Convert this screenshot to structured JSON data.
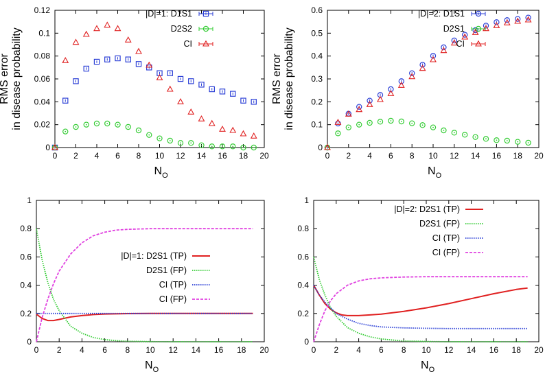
{
  "chart_data": [
    {
      "type": "scatter",
      "x_label": "N",
      "x_label_sub": "O",
      "y_label_line1": "RMS error",
      "y_label_line2": "in disease probability",
      "xlim": [
        0,
        20
      ],
      "ylim": [
        0,
        0.12
      ],
      "xticks": [
        0,
        2,
        4,
        6,
        8,
        10,
        12,
        14,
        16,
        18,
        20
      ],
      "yticks": [
        0,
        0.02,
        0.04,
        0.06,
        0.08,
        0.1,
        0.12
      ],
      "ytick_labels": [
        "0",
        "0.02",
        "0.04",
        "0.06",
        "0.08",
        "0.1",
        "0.12"
      ],
      "legend_position": "top-right",
      "series": [
        {
          "name": "|D|=1: D1S1",
          "marker": "square",
          "color": "#2b3fd6",
          "x": [
            0,
            1,
            2,
            3,
            4,
            5,
            6,
            7,
            8,
            9,
            10,
            11,
            12,
            13,
            14,
            15,
            16,
            17,
            18,
            19
          ],
          "y": [
            0,
            0.041,
            0.058,
            0.069,
            0.075,
            0.077,
            0.078,
            0.077,
            0.073,
            0.07,
            0.065,
            0.065,
            0.06,
            0.058,
            0.055,
            0.051,
            0.049,
            0.047,
            0.041,
            0.04
          ]
        },
        {
          "name": "D2S2",
          "marker": "circle",
          "color": "#33cc33",
          "x": [
            0,
            1,
            2,
            3,
            4,
            5,
            6,
            7,
            8,
            9,
            10,
            11,
            12,
            13,
            14,
            15,
            16,
            17,
            18,
            19
          ],
          "y": [
            0,
            0.014,
            0.018,
            0.02,
            0.021,
            0.021,
            0.02,
            0.018,
            0.015,
            0.011,
            0.008,
            0.006,
            0.004,
            0.004,
            0.002,
            0.001,
            0.001,
            0.001,
            0.0,
            0.0
          ]
        },
        {
          "name": "CI",
          "marker": "triangle",
          "color": "#e02020",
          "x": [
            0,
            1,
            2,
            3,
            4,
            5,
            6,
            7,
            8,
            9,
            10,
            11,
            12,
            13,
            14,
            15,
            16,
            17,
            18,
            19
          ],
          "y": [
            0,
            0.076,
            0.092,
            0.099,
            0.104,
            0.107,
            0.104,
            0.094,
            0.084,
            0.072,
            0.061,
            0.051,
            0.04,
            0.031,
            0.025,
            0.021,
            0.016,
            0.015,
            0.012,
            0.01
          ]
        }
      ]
    },
    {
      "type": "scatter",
      "x_label": "N",
      "x_label_sub": "O",
      "y_label_line1": "RMS error",
      "y_label_line2": "in disease probability",
      "xlim": [
        0,
        20
      ],
      "ylim": [
        0,
        0.6
      ],
      "xticks": [
        0,
        2,
        4,
        6,
        8,
        10,
        12,
        14,
        16,
        18,
        20
      ],
      "yticks": [
        0,
        0.1,
        0.2,
        0.3,
        0.4,
        0.5,
        0.6
      ],
      "ytick_labels": [
        "0",
        "0.1",
        "0.2",
        "0.3",
        "0.4",
        "0.5",
        "0.6"
      ],
      "legend_position": "top-right",
      "series": [
        {
          "name": "|D|=2: D1S1",
          "marker": "circle-plus",
          "color": "#2b3fd6",
          "x": [
            0,
            1,
            2,
            3,
            4,
            5,
            6,
            7,
            8,
            9,
            10,
            11,
            12,
            13,
            14,
            15,
            16,
            17,
            18,
            19
          ],
          "y": [
            0,
            0.105,
            0.148,
            0.178,
            0.205,
            0.23,
            0.255,
            0.29,
            0.325,
            0.362,
            0.401,
            0.438,
            0.468,
            0.493,
            0.513,
            0.533,
            0.548,
            0.557,
            0.562,
            0.568
          ]
        },
        {
          "name": "D2S1",
          "marker": "circle",
          "color": "#33cc33",
          "x": [
            0,
            1,
            2,
            3,
            4,
            5,
            6,
            7,
            8,
            9,
            10,
            11,
            12,
            13,
            14,
            15,
            16,
            17,
            18,
            19
          ],
          "y": [
            0,
            0.062,
            0.088,
            0.1,
            0.108,
            0.113,
            0.117,
            0.114,
            0.106,
            0.098,
            0.088,
            0.075,
            0.065,
            0.056,
            0.046,
            0.038,
            0.032,
            0.03,
            0.025,
            0.021
          ]
        },
        {
          "name": "CI",
          "marker": "triangle",
          "color": "#e02020",
          "x": [
            0,
            1,
            2,
            3,
            4,
            5,
            6,
            7,
            8,
            9,
            10,
            11,
            12,
            13,
            14,
            15,
            16,
            17,
            18,
            19
          ],
          "y": [
            0,
            0.11,
            0.146,
            0.166,
            0.188,
            0.21,
            0.236,
            0.272,
            0.31,
            0.346,
            0.384,
            0.424,
            0.457,
            0.483,
            0.503,
            0.52,
            0.533,
            0.545,
            0.552,
            0.558
          ]
        }
      ]
    },
    {
      "type": "line",
      "x_label": "N",
      "x_label_sub": "O",
      "xlim": [
        0,
        20
      ],
      "ylim": [
        0,
        1
      ],
      "xticks": [
        0,
        2,
        4,
        6,
        8,
        10,
        12,
        14,
        16,
        18,
        20
      ],
      "yticks": [
        0,
        0.2,
        0.4,
        0.6,
        0.8,
        1
      ],
      "ytick_labels": [
        "0",
        "0.2",
        "0.4",
        "0.6",
        "0.8",
        "1"
      ],
      "legend_position": "center-right",
      "series": [
        {
          "name": "|D|=1: D2S1 (TP)",
          "style": "solid",
          "color": "#e02020",
          "x": [
            0,
            0.5,
            1,
            1.5,
            2,
            3,
            4,
            5,
            6,
            8,
            10,
            12,
            14,
            16,
            19
          ],
          "y": [
            0.195,
            0.165,
            0.15,
            0.15,
            0.158,
            0.175,
            0.185,
            0.192,
            0.196,
            0.199,
            0.2,
            0.2,
            0.2,
            0.2,
            0.2
          ]
        },
        {
          "name": "D2S1 (FP)",
          "style": "dotted",
          "color": "#33cc33",
          "x": [
            0,
            0.5,
            1,
            1.5,
            2,
            3,
            4,
            5,
            6,
            7,
            8,
            10,
            12,
            14,
            16,
            19
          ],
          "y": [
            0.8,
            0.58,
            0.42,
            0.3,
            0.22,
            0.11,
            0.06,
            0.03,
            0.015,
            0.008,
            0.004,
            0.001,
            0,
            0,
            0,
            0
          ]
        },
        {
          "name": "CI (TP)",
          "style": "dotted",
          "color": "#2b3fd6",
          "x": [
            0,
            19
          ],
          "y": [
            0.2,
            0.2
          ]
        },
        {
          "name": "CI (FP)",
          "style": "dashed",
          "color": "#e040e0",
          "x": [
            0,
            0.5,
            1,
            1.5,
            2,
            3,
            4,
            5,
            6,
            7,
            8,
            10,
            12,
            14,
            16,
            19
          ],
          "y": [
            0.0,
            0.17,
            0.3,
            0.41,
            0.5,
            0.62,
            0.7,
            0.75,
            0.775,
            0.79,
            0.795,
            0.8,
            0.8,
            0.8,
            0.8,
            0.8
          ]
        }
      ]
    },
    {
      "type": "line",
      "x_label": "N",
      "x_label_sub": "O",
      "xlim": [
        0,
        20
      ],
      "ylim": [
        0,
        1
      ],
      "xticks": [
        0,
        2,
        4,
        6,
        8,
        10,
        12,
        14,
        16,
        18,
        20
      ],
      "yticks": [
        0,
        0.2,
        0.4,
        0.6,
        0.8,
        1
      ],
      "ytick_labels": [
        "0",
        "0.2",
        "0.4",
        "0.6",
        "0.8",
        "1"
      ],
      "legend_position": "top-right",
      "series": [
        {
          "name": "|D|=2: D2S1 (TP)",
          "style": "solid",
          "color": "#e02020",
          "x": [
            0,
            0.5,
            1,
            1.5,
            2,
            2.5,
            3,
            4,
            5,
            6,
            8,
            10,
            12,
            14,
            16,
            18,
            19
          ],
          "y": [
            0.4,
            0.33,
            0.27,
            0.23,
            0.205,
            0.19,
            0.185,
            0.185,
            0.19,
            0.195,
            0.215,
            0.24,
            0.27,
            0.305,
            0.34,
            0.37,
            0.38
          ]
        },
        {
          "name": "D2S1 (FP)",
          "style": "dotted",
          "color": "#33cc33",
          "x": [
            0,
            0.5,
            1,
            1.5,
            2,
            3,
            4,
            5,
            6,
            7,
            8,
            10,
            12,
            14,
            16,
            19
          ],
          "y": [
            0.6,
            0.44,
            0.33,
            0.24,
            0.18,
            0.1,
            0.06,
            0.035,
            0.02,
            0.012,
            0.006,
            0.002,
            0,
            0,
            0,
            0
          ]
        },
        {
          "name": "CI (TP)",
          "style": "dotted",
          "color": "#2b3fd6",
          "x": [
            0,
            0.5,
            1,
            1.5,
            2,
            3,
            4,
            5,
            6,
            8,
            10,
            12,
            14,
            16,
            19
          ],
          "y": [
            0.4,
            0.33,
            0.28,
            0.24,
            0.2,
            0.16,
            0.13,
            0.115,
            0.105,
            0.098,
            0.095,
            0.093,
            0.093,
            0.093,
            0.093
          ]
        },
        {
          "name": "CI (FP)",
          "style": "dashed",
          "color": "#e040e0",
          "x": [
            0,
            0.5,
            1,
            1.5,
            2,
            3,
            4,
            5,
            6,
            7,
            8,
            10,
            12,
            14,
            16,
            19
          ],
          "y": [
            0.0,
            0.12,
            0.22,
            0.29,
            0.34,
            0.4,
            0.43,
            0.445,
            0.452,
            0.455,
            0.458,
            0.46,
            0.46,
            0.46,
            0.46,
            0.46
          ]
        }
      ]
    }
  ]
}
